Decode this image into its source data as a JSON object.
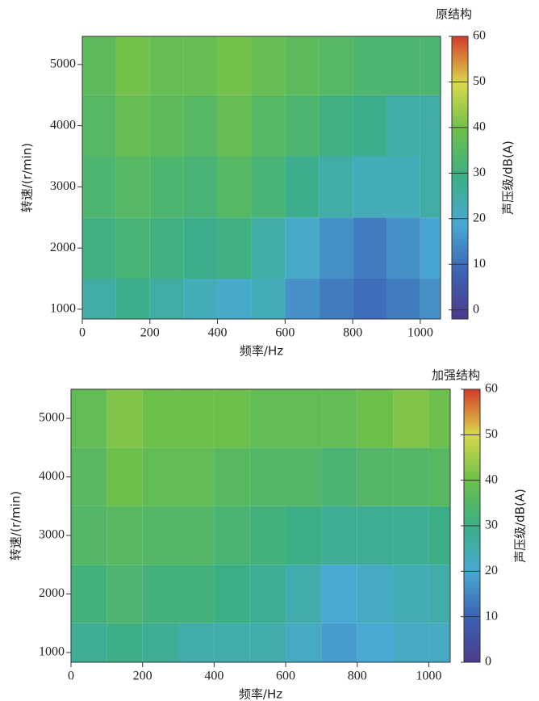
{
  "chart_data": [
    {
      "type": "heatmap",
      "title": "原结构",
      "xlabel": "频率/Hz",
      "ylabel": "转速/(r/min)",
      "colorbar_label": "声压级/dB(A)",
      "x": [
        50,
        150,
        250,
        350,
        450,
        550,
        650,
        750,
        850,
        950,
        1050
      ],
      "y": [
        1000,
        2000,
        3000,
        4000,
        5000
      ],
      "z": [
        [
          25,
          28,
          25,
          22,
          20,
          22,
          15,
          12,
          10,
          12,
          15
        ],
        [
          30,
          32,
          30,
          28,
          30,
          25,
          20,
          15,
          12,
          15,
          18
        ],
        [
          33,
          35,
          33,
          32,
          35,
          32,
          28,
          25,
          22,
          22,
          25
        ],
        [
          35,
          38,
          36,
          35,
          38,
          35,
          33,
          30,
          28,
          25,
          25
        ],
        [
          36,
          40,
          38,
          38,
          40,
          38,
          36,
          35,
          33,
          33,
          33
        ]
      ],
      "xlim": [
        0,
        1060
      ],
      "ylim": [
        840,
        5460
      ],
      "xticks": [
        0,
        200,
        400,
        600,
        800,
        1000
      ],
      "yticks": [
        1000,
        2000,
        3000,
        4000,
        5000
      ],
      "clim": [
        -2,
        60
      ],
      "cticks": [
        0,
        10,
        20,
        30,
        40,
        50,
        60
      ],
      "colormap": [
        "#4b3a8c",
        "#3c63b4",
        "#49a9d2",
        "#3bae86",
        "#6cbf4a",
        "#d9d94a",
        "#d63a2a"
      ]
    },
    {
      "type": "heatmap",
      "title": "加强结构",
      "xlabel": "频率/Hz",
      "ylabel": "转速/(r/min)",
      "colorbar_label": "声压级/dB(A)",
      "x": [
        50,
        150,
        250,
        350,
        450,
        550,
        650,
        750,
        850,
        950,
        1050
      ],
      "y": [
        1000,
        2000,
        3000,
        4000,
        5000
      ],
      "z": [
        [
          28,
          30,
          28,
          25,
          25,
          25,
          22,
          18,
          20,
          22,
          22
        ],
        [
          32,
          34,
          32,
          32,
          30,
          28,
          25,
          20,
          22,
          24,
          25
        ],
        [
          35,
          36,
          35,
          35,
          33,
          32,
          30,
          28,
          28,
          28,
          30
        ],
        [
          36,
          40,
          38,
          38,
          36,
          35,
          35,
          33,
          35,
          35,
          36
        ],
        [
          38,
          42,
          40,
          40,
          40,
          38,
          38,
          38,
          40,
          42,
          40
        ]
      ],
      "xlim": [
        0,
        1060
      ],
      "ylim": [
        834,
        5497
      ],
      "xticks": [
        0,
        200,
        400,
        600,
        800,
        1000
      ],
      "yticks": [
        1000,
        2000,
        3000,
        4000,
        5000
      ],
      "clim": [
        0,
        60
      ],
      "cticks": [
        0,
        10,
        20,
        30,
        40,
        50,
        60
      ],
      "colormap": [
        "#4b3a8c",
        "#3c63b4",
        "#49a9d2",
        "#3bae86",
        "#6cbf4a",
        "#d9d94a",
        "#d63a2a"
      ]
    }
  ]
}
